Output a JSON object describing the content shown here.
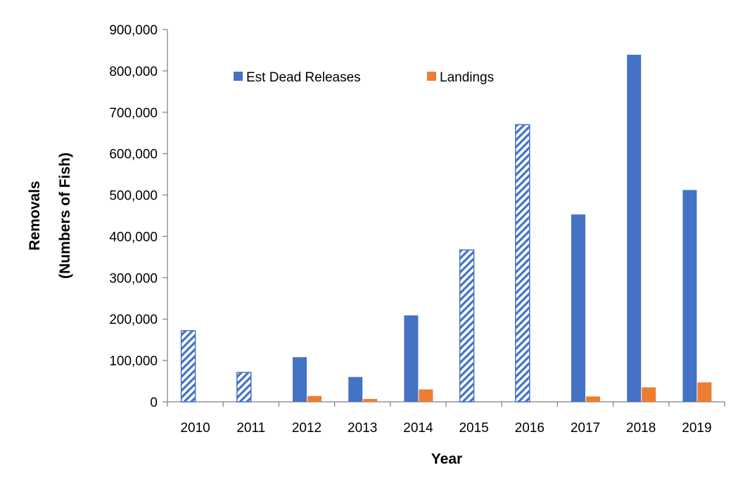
{
  "chart_data": {
    "type": "bar",
    "title": "",
    "xlabel": "Year",
    "ylabel": [
      "Removals",
      "(Numbers of Fish)"
    ],
    "categories": [
      "2010",
      "2011",
      "2012",
      "2013",
      "2014",
      "2015",
      "2016",
      "2017",
      "2018",
      "2019"
    ],
    "ylim": [
      0,
      900000
    ],
    "yticks": [
      0,
      100000,
      200000,
      300000,
      400000,
      500000,
      600000,
      700000,
      800000,
      900000
    ],
    "ytick_labels": [
      "0",
      "100,000",
      "200,000",
      "300,000",
      "400,000",
      "500,000",
      "600,000",
      "700,000",
      "800,000",
      "900,000"
    ],
    "grid": false,
    "legend_position": "top-center",
    "series": [
      {
        "name": "Est Dead Releases",
        "color": "#4472C4",
        "values": [
          172000,
          71000,
          108000,
          60000,
          209000,
          367000,
          670000,
          453000,
          839000,
          512000
        ],
        "hatched": [
          true,
          true,
          false,
          false,
          false,
          true,
          true,
          false,
          false,
          false
        ]
      },
      {
        "name": "Landings",
        "color": "#ED7D31",
        "values": [
          null,
          null,
          14000,
          7000,
          30000,
          null,
          null,
          13000,
          35000,
          47000
        ]
      }
    ]
  }
}
